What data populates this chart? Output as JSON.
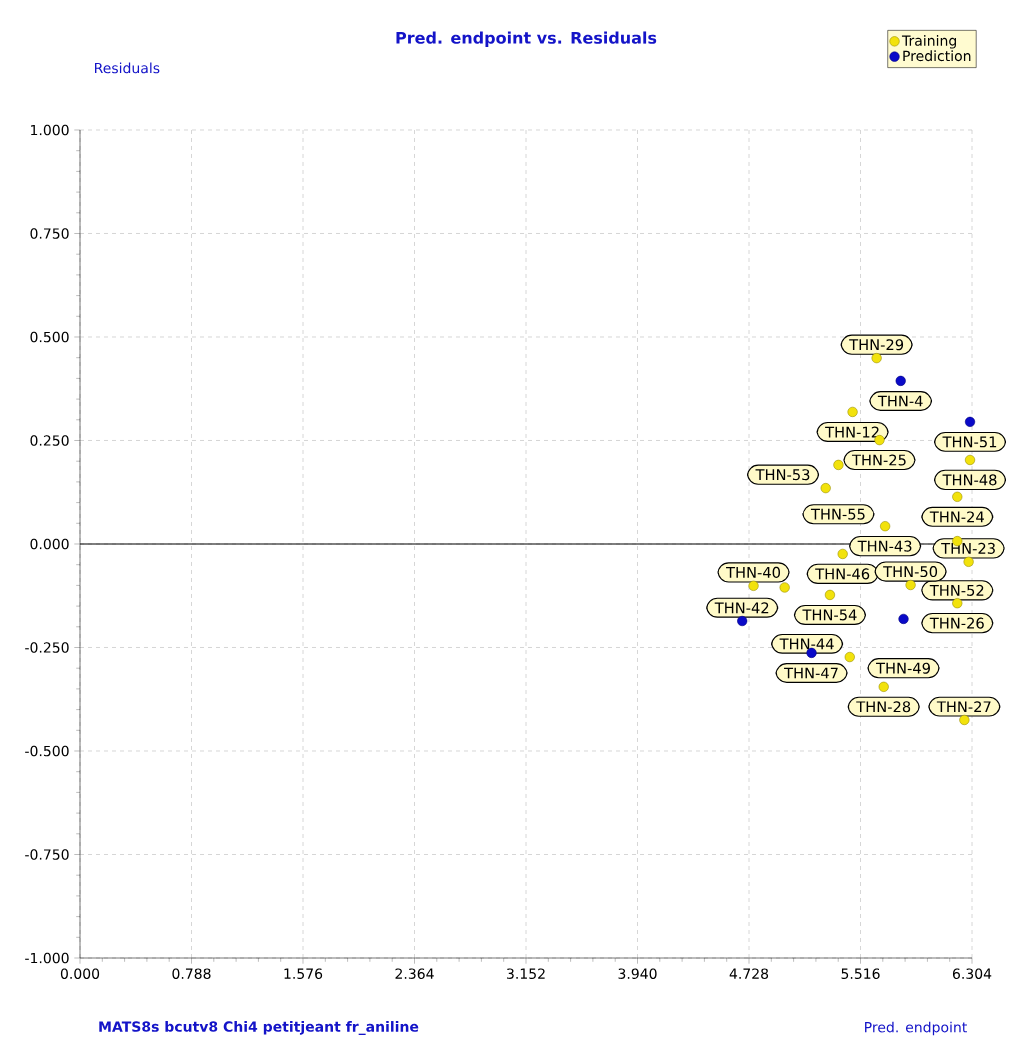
{
  "chart_data": {
    "type": "scatter",
    "title": "Pred. endpoint vs. Residuals",
    "xlabel": "Pred. endpoint",
    "ylabel": "Residuals",
    "xlim": [
      0,
      6.304
    ],
    "ylim": [
      -1,
      1
    ],
    "xticks": [
      {
        "value": 0,
        "label": "0.000"
      },
      {
        "value": 0.788,
        "label": "0.788"
      },
      {
        "value": 1.576,
        "label": "1.576"
      },
      {
        "value": 2.364,
        "label": "2.364"
      },
      {
        "value": 3.152,
        "label": "3.152"
      },
      {
        "value": 3.94,
        "label": "3.940"
      },
      {
        "value": 4.728,
        "label": "4.728"
      },
      {
        "value": 5.516,
        "label": "5.516"
      },
      {
        "value": 6.304,
        "label": "6.304"
      }
    ],
    "yticks": [
      {
        "value": -1,
        "label": "-1.000"
      },
      {
        "value": -0.75,
        "label": "-0.750"
      },
      {
        "value": -0.5,
        "label": "-0.500"
      },
      {
        "value": -0.25,
        "label": "-0.250"
      },
      {
        "value": 0,
        "label": "0.000"
      },
      {
        "value": 0.25,
        "label": "0.250"
      },
      {
        "value": 0.5,
        "label": "0.500"
      },
      {
        "value": 0.75,
        "label": "0.750"
      },
      {
        "value": 1,
        "label": "1.000"
      }
    ],
    "grid": true,
    "legend": "top right",
    "marker": "circle",
    "ref_lines": [
      {
        "axis": "y",
        "value": 0,
        "color": "#000000"
      }
    ],
    "series": [
      {
        "name": "Training",
        "color": "#f2e20c",
        "x": [
          5.63,
          5.46,
          5.65,
          5.36,
          6.29,
          5.27,
          6.2,
          5.69,
          6.2,
          5.39,
          6.28,
          4.76,
          5.3,
          5.87,
          6.2,
          5.44,
          5.68,
          6.25,
          4.98
        ],
        "values": [
          0.449,
          0.319,
          0.251,
          0.191,
          0.203,
          0.135,
          0.114,
          0.043,
          0.007,
          -0.024,
          -0.043,
          -0.101,
          -0.123,
          -0.099,
          -0.143,
          -0.273,
          -0.345,
          -0.425,
          -0.105
        ]
      },
      {
        "name": "Prediction",
        "color": "#0a0ac8",
        "x": [
          5.8,
          6.29,
          4.68,
          5.82,
          5.17
        ],
        "values": [
          0.394,
          0.295,
          -0.186,
          -0.181,
          -0.263
        ]
      }
    ],
    "annotations": [
      {
        "text": "THN-29",
        "x": 5.63,
        "y": 0.449
      },
      {
        "text": "THN-4",
        "x": 5.8,
        "y": 0.394
      },
      {
        "text": "THN-12",
        "x": 5.46,
        "y": 0.319
      },
      {
        "text": "THN-51",
        "x": 6.29,
        "y": 0.295
      },
      {
        "text": "THN-25",
        "x": 5.65,
        "y": 0.251
      },
      {
        "text": "THN-55",
        "x": 5.36,
        "y": 0.191
      },
      {
        "text": "THN-48",
        "x": 6.29,
        "y": 0.203
      },
      {
        "text": "THN-53",
        "x": 5.27,
        "y": 0.135
      },
      {
        "text": "THN-24",
        "x": 6.2,
        "y": 0.114
      },
      {
        "text": "THN-43",
        "x": 5.69,
        "y": 0.043
      },
      {
        "text": "THN-52",
        "x": 6.2,
        "y": 0.007
      },
      {
        "text": "THN-23",
        "x": 6.28,
        "y": -0.043
      },
      {
        "text": "THN-26",
        "x": 6.2,
        "y": -0.143
      },
      {
        "text": "THN-46",
        "x": 5.39,
        "y": -0.024
      },
      {
        "text": "THN-40",
        "x": 4.76,
        "y": -0.101
      },
      {
        "text": "THN-54",
        "x": 5.3,
        "y": -0.123
      },
      {
        "text": "THN-50",
        "x": 5.87,
        "y": -0.099
      },
      {
        "text": "THN-42",
        "x": 4.68,
        "y": -0.186
      },
      {
        "text": "THN-49",
        "x": 5.82,
        "y": -0.181
      },
      {
        "text": "THN-44",
        "x": 5.44,
        "y": -0.273
      },
      {
        "text": "THN-47",
        "x": 5.17,
        "y": -0.263
      },
      {
        "text": "THN-28",
        "x": 5.68,
        "y": -0.345
      },
      {
        "text": "THN-27",
        "x": 6.25,
        "y": -0.425
      },
      "MATS8s  bcutv8  Chi4  petitjeant  fr_aniline"
    ]
  }
}
